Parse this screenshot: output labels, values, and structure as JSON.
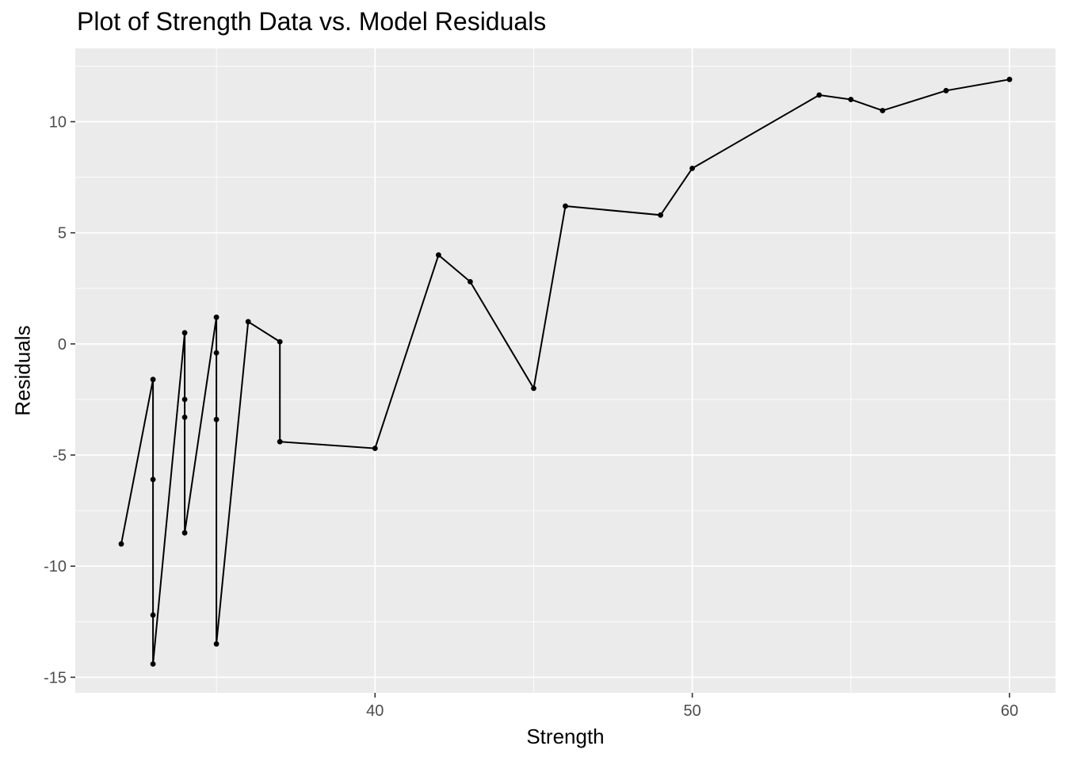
{
  "chart_data": {
    "type": "line",
    "title": "Plot of Strength Data vs. Model Residuals",
    "xlabel": "Strength",
    "ylabel": "Residuals",
    "x": [
      32,
      33,
      33,
      33,
      33,
      34,
      34,
      34,
      34,
      35,
      35,
      35,
      35,
      36,
      37,
      37,
      40,
      42,
      43,
      45,
      46,
      49,
      50,
      54,
      55,
      56,
      58,
      60
    ],
    "y": [
      -9.0,
      -1.6,
      -6.1,
      -12.2,
      -14.4,
      0.5,
      -2.5,
      -3.3,
      -8.5,
      1.2,
      -0.4,
      -3.4,
      -13.5,
      1.0,
      0.1,
      -4.4,
      -4.7,
      4.0,
      2.8,
      -2.0,
      6.2,
      5.8,
      7.9,
      11.2,
      11.0,
      10.5,
      11.4,
      11.9
    ],
    "xlim": [
      30.55,
      61.45
    ],
    "ylim": [
      -15.7,
      13.3
    ],
    "x_ticks_major": [
      40,
      50,
      60
    ],
    "x_tick_labels": [
      "40",
      "50",
      "60"
    ],
    "x_ticks_minor": [
      35,
      45,
      55
    ],
    "y_ticks_major": [
      10,
      5,
      0,
      -5,
      -10,
      -15
    ],
    "y_tick_labels": [
      "10",
      "5",
      "0",
      "-5",
      "-10",
      "-15"
    ],
    "y_ticks_minor": [
      12.5,
      7.5,
      2.5,
      -2.5,
      -7.5,
      -12.5
    ],
    "grid": "major+minor",
    "legend_position": "none",
    "marker": "filled-circle",
    "colors": {
      "panel_background": "#EBEBEB",
      "gridline": "#FFFFFF",
      "line": "#000000",
      "point": "#000000",
      "tick_mark": "#333333",
      "tick_label": "#4D4D4D",
      "title_text": "#000000",
      "axis_title_text": "#000000",
      "page_background": "#FFFFFF"
    }
  }
}
